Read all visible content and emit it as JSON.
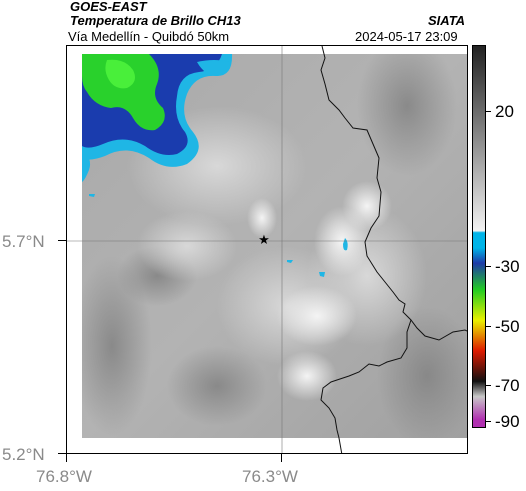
{
  "header": {
    "satellite": "GOES-EAST",
    "product": "Temperatura de Brillo CH13",
    "source": "SIATA",
    "route": "Vía Medellín - Quibdó 50km",
    "datetime": "2024-05-17 23:09"
  },
  "map": {
    "lat_labels": [
      "5.7°N",
      "5.2°N"
    ],
    "lon_labels": [
      "76.8°W",
      "76.3°W"
    ],
    "marker_icon": "star-icon"
  },
  "colorbar": {
    "labels": [
      "20",
      "-30",
      "-50",
      "-70",
      "-90"
    ],
    "colors": {
      "gray_top": "#222222",
      "gray_bottom": "#f2f2f2",
      "cyan": "#00b4e8",
      "blue": "#1e3aa8",
      "green": "#22cc22",
      "yellow": "#eaf000",
      "red": "#dd1a00",
      "black": "#111111",
      "purple": "#b030b0"
    }
  }
}
